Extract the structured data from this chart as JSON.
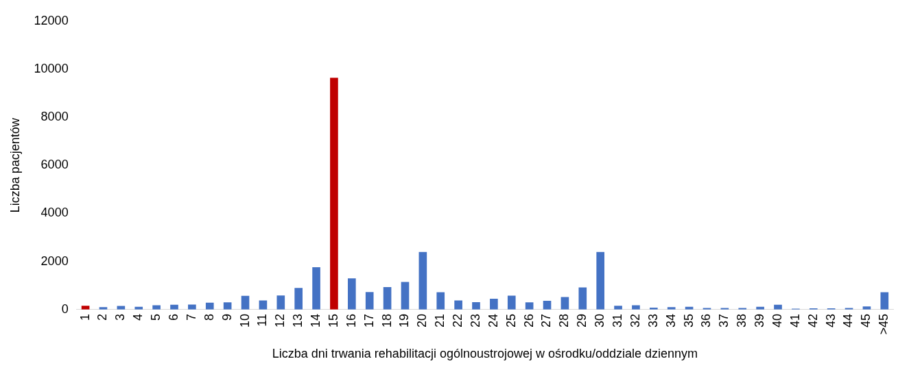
{
  "chart_data": {
    "type": "bar",
    "xlabel": "Liczba dni trwania rehabilitacji ogólnoustrojowej w ośrodku/oddziale dziennym",
    "ylabel": "Liczba pacjentów",
    "categories": [
      "1",
      "2",
      "3",
      "4",
      "5",
      "6",
      "7",
      "8",
      "9",
      "10",
      "11",
      "12",
      "13",
      "14",
      "15",
      "16",
      "17",
      "18",
      "19",
      "20",
      "21",
      "22",
      "23",
      "24",
      "25",
      "26",
      "27",
      "28",
      "29",
      "30",
      "31",
      "32",
      "33",
      "34",
      "35",
      "36",
      "37",
      "38",
      "39",
      "40",
      "41",
      "42",
      "43",
      "44",
      "45",
      ">45"
    ],
    "values": [
      160,
      100,
      150,
      120,
      180,
      200,
      210,
      290,
      300,
      570,
      380,
      590,
      900,
      1760,
      9640,
      1300,
      730,
      940,
      1150,
      2400,
      720,
      380,
      310,
      450,
      580,
      300,
      370,
      520,
      920,
      2400,
      160,
      180,
      80,
      100,
      120,
      70,
      70,
      70,
      120,
      200,
      40,
      50,
      50,
      70,
      130,
      720
    ],
    "colors": [
      "#c00000",
      "#4472c4",
      "#4472c4",
      "#4472c4",
      "#4472c4",
      "#4472c4",
      "#4472c4",
      "#4472c4",
      "#4472c4",
      "#4472c4",
      "#4472c4",
      "#4472c4",
      "#4472c4",
      "#4472c4",
      "#c00000",
      "#4472c4",
      "#4472c4",
      "#4472c4",
      "#4472c4",
      "#4472c4",
      "#4472c4",
      "#4472c4",
      "#4472c4",
      "#4472c4",
      "#4472c4",
      "#4472c4",
      "#4472c4",
      "#4472c4",
      "#4472c4",
      "#4472c4",
      "#4472c4",
      "#4472c4",
      "#4472c4",
      "#4472c4",
      "#4472c4",
      "#4472c4",
      "#4472c4",
      "#4472c4",
      "#4472c4",
      "#4472c4",
      "#4472c4",
      "#4472c4",
      "#4472c4",
      "#4472c4",
      "#4472c4",
      "#4472c4"
    ],
    "ylim": [
      0,
      12000
    ],
    "yticks": [
      0,
      2000,
      4000,
      6000,
      8000,
      10000,
      12000
    ],
    "grid": false,
    "legend": false
  }
}
